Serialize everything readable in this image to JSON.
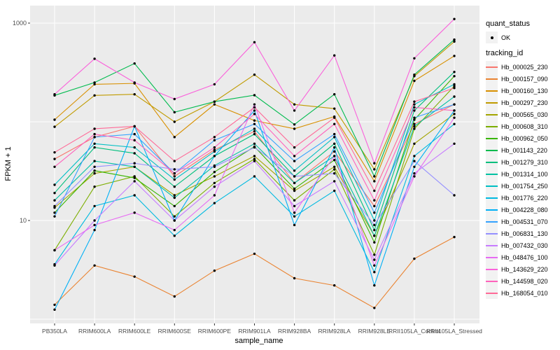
{
  "axes": {
    "y_title": "FPKM + 1",
    "x_title": "sample_name"
  },
  "legend": {
    "quant_status_title": "quant_status",
    "quant_status_items": [
      "OK"
    ],
    "tracking_id_title": "tracking_id"
  },
  "colors": {
    "panel_background": "#EBEBEB",
    "gridline": "#FFFFFF",
    "tick_text": "#4D4D4D",
    "tick_mark": "#333333",
    "point": "#000000",
    "legend_key_background": "#F2F2F2"
  },
  "chart_data": {
    "type": "line",
    "title": "",
    "xlabel": "sample_name",
    "ylabel": "FPKM + 1",
    "y_scale": "log10",
    "ylim": [
      1,
      1300
    ],
    "y_tick_labels": [
      10,
      1000
    ],
    "y_gridlines": [
      1,
      10,
      100,
      1000
    ],
    "grid": true,
    "legend_position": "right",
    "quant_status": "OK",
    "point_color": "#000000",
    "categories": [
      "PB350LA",
      "RRIM600LA",
      "RRIM600LE",
      "RRIM600SE",
      "RRIM600PE",
      "RRIM901LA",
      "RRIM928BA",
      "RRIM928LA",
      "RRIM928LE",
      "RRII105LA_Control",
      "RRII105LA_Stressed"
    ],
    "series": [
      {
        "name": "Hb_000025_230",
        "color": "#F8766D",
        "values": [
          42,
          70,
          90,
          28,
          52,
          80,
          24,
          50,
          14,
          95,
          150
        ]
      },
      {
        "name": "Hb_000157_090",
        "color": "#EA8331",
        "values": [
          1.4,
          3.5,
          2.7,
          1.7,
          3.1,
          4.6,
          2.6,
          2.2,
          1.3,
          4.1,
          6.8
        ]
      },
      {
        "name": "Hb_000160_130",
        "color": "#D89000",
        "values": [
          105,
          240,
          245,
          70,
          150,
          103,
          85,
          113,
          25,
          260,
          465
        ]
      },
      {
        "name": "Hb_000297_230",
        "color": "#C09B00",
        "values": [
          89,
          185,
          190,
          100,
          160,
          300,
          150,
          136,
          33,
          290,
          650
        ]
      },
      {
        "name": "Hb_000565_030",
        "color": "#A3A500",
        "values": [
          13.5,
          30,
          35,
          18,
          28,
          45,
          20,
          35,
          7,
          60,
          120
        ]
      },
      {
        "name": "Hb_000608_310",
        "color": "#7CAE00",
        "values": [
          5,
          22,
          28,
          11,
          24,
          42,
          16,
          33,
          4.5,
          85,
          230
        ]
      },
      {
        "name": "Hb_000962_050",
        "color": "#39B600",
        "values": [
          12,
          32,
          27,
          14,
          31,
          56,
          21,
          41,
          6,
          105,
          290
        ]
      },
      {
        "name": "Hb_001143_220",
        "color": "#00BB4E",
        "values": [
          185,
          250,
          390,
          125,
          160,
          186,
          94,
          190,
          28,
          300,
          680
        ]
      },
      {
        "name": "Hb_001279_310",
        "color": "#00BF7D",
        "values": [
          19,
          55,
          48,
          22,
          45,
          75,
          28,
          60,
          8,
          130,
          320
        ]
      },
      {
        "name": "Hb_001314_100",
        "color": "#00C1A3",
        "values": [
          16,
          40,
          35,
          17,
          36,
          60,
          24,
          45,
          7,
          90,
          180
        ]
      },
      {
        "name": "Hb_001754_250",
        "color": "#00BFC4",
        "values": [
          23,
          60,
          55,
          26,
          50,
          85,
          32,
          70,
          10,
          150,
          240
        ]
      },
      {
        "name": "Hb_001776_220",
        "color": "#00BAE0",
        "values": [
          3.6,
          14,
          18,
          7,
          15,
          28,
          11,
          20,
          3,
          45,
          95
        ]
      },
      {
        "name": "Hb_004228_080",
        "color": "#00B0F6",
        "values": [
          1.25,
          8,
          90,
          10,
          45,
          130,
          9,
          55,
          2.2,
          35,
          130
        ]
      },
      {
        "name": "Hb_004531_070",
        "color": "#35A2FF",
        "values": [
          11,
          70,
          75,
          30,
          65,
          95,
          40,
          75,
          12,
          110,
          150
        ]
      },
      {
        "name": "Hb_006831_130",
        "color": "#9590FF",
        "values": [
          14,
          35,
          38,
          33,
          35,
          55,
          28,
          30,
          9,
          40,
          18
        ]
      },
      {
        "name": "Hb_007432_030",
        "color": "#C77CFF",
        "values": [
          3.5,
          10,
          25,
          10,
          22,
          40,
          14,
          25,
          4,
          30,
          60
        ]
      },
      {
        "name": "Hb_048476_100",
        "color": "#E76BF3",
        "values": [
          5,
          9,
          12,
          8,
          18,
          150,
          12,
          45,
          3.5,
          28,
          110
        ]
      },
      {
        "name": "Hb_143629_220",
        "color": "#FA62DB",
        "values": [
          190,
          435,
          250,
          170,
          240,
          640,
          130,
          470,
          38,
          440,
          1100
        ]
      },
      {
        "name": "Hb_144598_020",
        "color": "#FF62BC",
        "values": [
          35,
          75,
          65,
          30,
          55,
          120,
          45,
          95,
          16,
          140,
          130
        ]
      },
      {
        "name": "Hb_168054_010",
        "color": "#FF6A98",
        "values": [
          49,
          85,
          90,
          40,
          70,
          140,
          55,
          110,
          20,
          160,
          220
        ]
      }
    ]
  }
}
